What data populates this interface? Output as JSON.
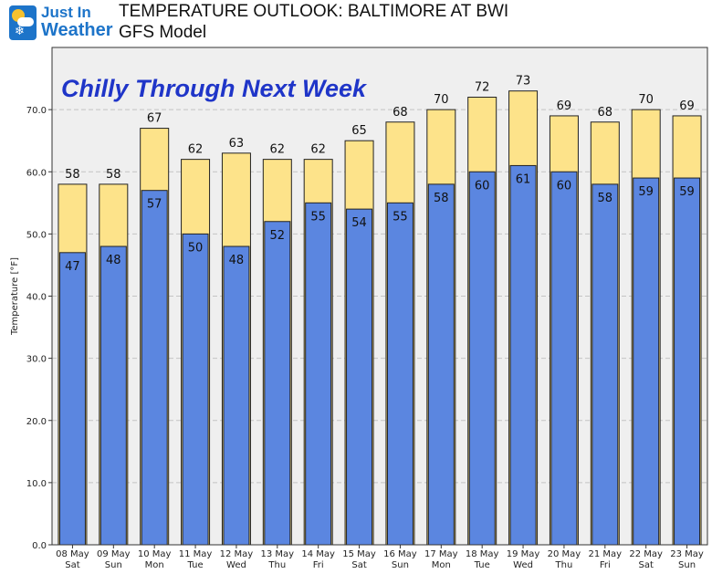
{
  "header": {
    "logo_line1": "Just In",
    "logo_line2": "Weather",
    "title": "TEMPERATURE OUTLOOK: BALTIMORE AT BWI",
    "subtitle": "GFS Model"
  },
  "colors": {
    "high_bar": "#fde38a",
    "low_bar": "#5b86e0",
    "annotation": "#1f35c8",
    "plot_bg": "#efefef",
    "brand": "#1d74c9"
  },
  "chart_data": {
    "type": "bar",
    "annotation": "Chilly Through Next Week",
    "xlabel": "",
    "ylabel": "Temperature [°F]",
    "ylim": [
      0,
      80
    ],
    "yticks": [
      "0.0",
      "10.0",
      "20.0",
      "30.0",
      "40.0",
      "50.0",
      "60.0",
      "70.0"
    ],
    "grid": true,
    "categories": [
      {
        "date": "08 May",
        "day": "Sat"
      },
      {
        "date": "09 May",
        "day": "Sun"
      },
      {
        "date": "10 May",
        "day": "Mon"
      },
      {
        "date": "11 May",
        "day": "Tue"
      },
      {
        "date": "12 May",
        "day": "Wed"
      },
      {
        "date": "13 May",
        "day": "Thu"
      },
      {
        "date": "14 May",
        "day": "Fri"
      },
      {
        "date": "15 May",
        "day": "Sat"
      },
      {
        "date": "16 May",
        "day": "Sun"
      },
      {
        "date": "17 May",
        "day": "Mon"
      },
      {
        "date": "18 May",
        "day": "Tue"
      },
      {
        "date": "19 May",
        "day": "Wed"
      },
      {
        "date": "20 May",
        "day": "Thu"
      },
      {
        "date": "21 May",
        "day": "Fri"
      },
      {
        "date": "22 May",
        "day": "Sat"
      },
      {
        "date": "23 May",
        "day": "Sun"
      }
    ],
    "series": [
      {
        "key": "high",
        "values": [
          58,
          58,
          67,
          62,
          63,
          62,
          62,
          65,
          68,
          70,
          72,
          73,
          69,
          68,
          70,
          69
        ]
      },
      {
        "key": "low",
        "values": [
          47,
          48,
          57,
          50,
          48,
          52,
          55,
          54,
          55,
          58,
          60,
          61,
          60,
          58,
          59,
          59
        ]
      }
    ]
  }
}
